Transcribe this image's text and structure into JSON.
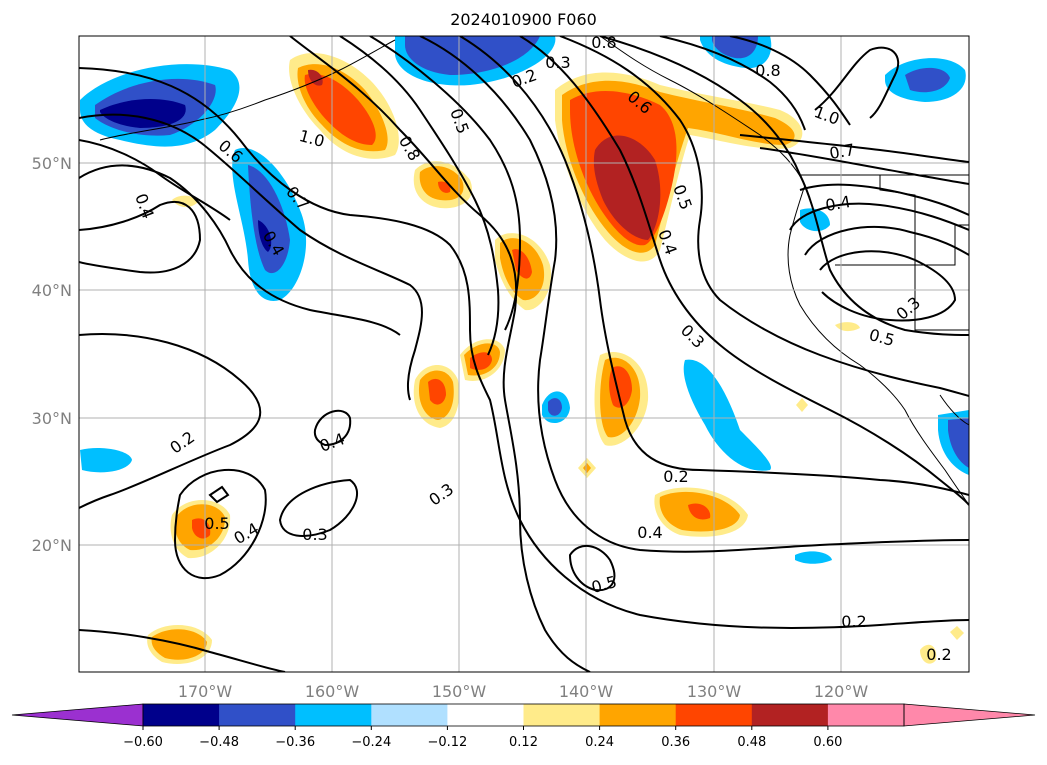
{
  "title": "2024010900 F060",
  "map": {
    "lat_labels": [
      "50°N",
      "40°N",
      "30°N",
      "20°N"
    ],
    "lon_labels": [
      "170°W",
      "160°W",
      "150°W",
      "140°W",
      "130°W",
      "120°W"
    ],
    "contour_labels": [
      "0.2",
      "0.2",
      "0.2",
      "0.2",
      "0.2",
      "0.3",
      "0.3",
      "0.3",
      "0.3",
      "0.3",
      "0.4",
      "0.4",
      "0.4",
      "0.4",
      "0.4",
      "0.4",
      "0.5",
      "0.5",
      "0.5",
      "0.5",
      "0.5",
      "0.6",
      "0.6",
      "0.7",
      "0.7",
      "0.8",
      "0.8",
      "1.0",
      "1.0",
      "0.8",
      "0.4"
    ]
  },
  "colorbar": {
    "ticks": [
      "−0.60",
      "−0.48",
      "−0.36",
      "−0.24",
      "−0.12",
      "0.12",
      "0.24",
      "0.36",
      "0.48",
      "0.60"
    ],
    "colors": {
      "under": "#9b30d0",
      "bins": [
        "#00008b",
        "#3050c8",
        "#00bfff",
        "#b0e0ff",
        "#ffffff",
        "#ffeb8a",
        "#ffa500",
        "#ff4500",
        "#b22222",
        "#ff88aa"
      ]
    }
  }
}
